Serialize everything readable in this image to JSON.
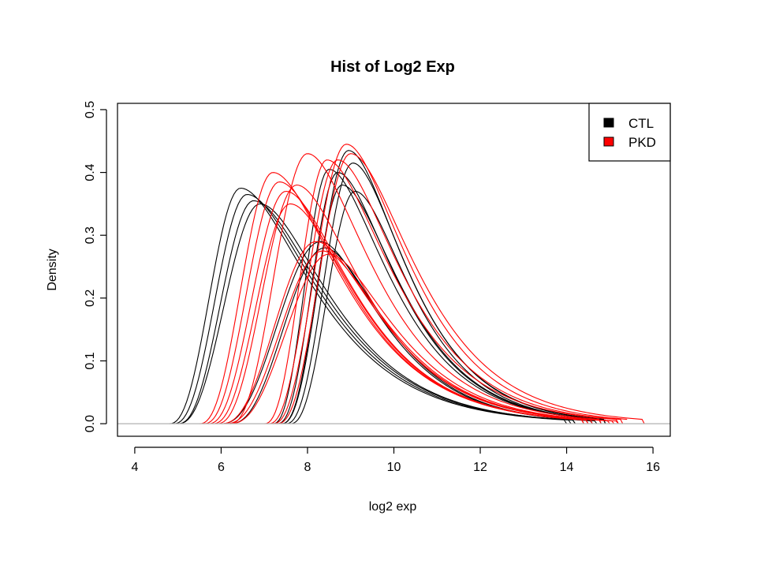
{
  "chart_data": {
    "type": "line",
    "title": "Hist of Log2 Exp",
    "xlabel": "log2 exp",
    "ylabel": "Density",
    "xlim": [
      3.6,
      16.4
    ],
    "ylim": [
      -0.02,
      0.51
    ],
    "x_ticks": [
      4,
      6,
      8,
      10,
      12,
      14,
      16
    ],
    "y_ticks": [
      0.0,
      0.1,
      0.2,
      0.3,
      0.4,
      0.5
    ],
    "x_tick_labels": [
      "4",
      "6",
      "8",
      "10",
      "12",
      "14",
      "16"
    ],
    "y_tick_labels": [
      "0.0",
      "0.1",
      "0.2",
      "0.3",
      "0.4",
      "0.5"
    ],
    "grid": false,
    "baseline": 0.0,
    "legend": {
      "position": "top-right",
      "entries": [
        {
          "label": "CTL",
          "color": "#000000"
        },
        {
          "label": "PKD",
          "color": "#ff0000"
        }
      ]
    },
    "series": [
      {
        "group": "CTL",
        "color": "#000000",
        "peak_x": 6.45,
        "peak_y": 0.375,
        "start_x": 4.8,
        "end_x": 14.0
      },
      {
        "group": "CTL",
        "color": "#000000",
        "peak_x": 6.6,
        "peak_y": 0.365,
        "start_x": 4.9,
        "end_x": 14.1
      },
      {
        "group": "CTL",
        "color": "#000000",
        "peak_x": 6.75,
        "peak_y": 0.355,
        "start_x": 5.0,
        "end_x": 14.2
      },
      {
        "group": "CTL",
        "color": "#000000",
        "peak_x": 6.9,
        "peak_y": 0.35,
        "start_x": 5.0,
        "end_x": 14.2
      },
      {
        "group": "CTL",
        "color": "#000000",
        "peak_x": 8.3,
        "peak_y": 0.29,
        "start_x": 6.0,
        "end_x": 14.6
      },
      {
        "group": "CTL",
        "color": "#000000",
        "peak_x": 8.4,
        "peak_y": 0.28,
        "start_x": 6.2,
        "end_x": 14.7
      },
      {
        "group": "CTL",
        "color": "#000000",
        "peak_x": 8.5,
        "peak_y": 0.405,
        "start_x": 7.2,
        "end_x": 14.8
      },
      {
        "group": "CTL",
        "color": "#000000",
        "peak_x": 8.7,
        "peak_y": 0.4,
        "start_x": 7.3,
        "end_x": 14.8
      },
      {
        "group": "CTL",
        "color": "#000000",
        "peak_x": 8.8,
        "peak_y": 0.38,
        "start_x": 7.4,
        "end_x": 14.9
      },
      {
        "group": "CTL",
        "color": "#000000",
        "peak_x": 8.95,
        "peak_y": 0.435,
        "start_x": 7.4,
        "end_x": 14.9
      },
      {
        "group": "CTL",
        "color": "#000000",
        "peak_x": 9.05,
        "peak_y": 0.415,
        "start_x": 7.5,
        "end_x": 14.9
      },
      {
        "group": "CTL",
        "color": "#000000",
        "peak_x": 9.1,
        "peak_y": 0.37,
        "start_x": 7.6,
        "end_x": 14.9
      },
      {
        "group": "PKD",
        "color": "#ff0000",
        "peak_x": 7.2,
        "peak_y": 0.4,
        "start_x": 5.5,
        "end_x": 14.4
      },
      {
        "group": "PKD",
        "color": "#ff0000",
        "peak_x": 7.35,
        "peak_y": 0.385,
        "start_x": 5.6,
        "end_x": 14.4
      },
      {
        "group": "PKD",
        "color": "#ff0000",
        "peak_x": 7.5,
        "peak_y": 0.37,
        "start_x": 5.7,
        "end_x": 14.5
      },
      {
        "group": "PKD",
        "color": "#ff0000",
        "peak_x": 7.6,
        "peak_y": 0.35,
        "start_x": 5.8,
        "end_x": 14.5
      },
      {
        "group": "PKD",
        "color": "#ff0000",
        "peak_x": 7.75,
        "peak_y": 0.38,
        "start_x": 5.9,
        "end_x": 14.6
      },
      {
        "group": "PKD",
        "color": "#ff0000",
        "peak_x": 8.0,
        "peak_y": 0.43,
        "start_x": 6.2,
        "end_x": 14.8
      },
      {
        "group": "PKD",
        "color": "#ff0000",
        "peak_x": 8.2,
        "peak_y": 0.29,
        "start_x": 6.0,
        "end_x": 15.0
      },
      {
        "group": "PKD",
        "color": "#ff0000",
        "peak_x": 8.35,
        "peak_y": 0.275,
        "start_x": 6.1,
        "end_x": 15.1
      },
      {
        "group": "PKD",
        "color": "#ff0000",
        "peak_x": 8.5,
        "peak_y": 0.27,
        "start_x": 6.2,
        "end_x": 15.2
      },
      {
        "group": "PKD",
        "color": "#ff0000",
        "peak_x": 8.45,
        "peak_y": 0.42,
        "start_x": 7.0,
        "end_x": 15.2
      },
      {
        "group": "PKD",
        "color": "#ff0000",
        "peak_x": 8.7,
        "peak_y": 0.42,
        "start_x": 7.1,
        "end_x": 15.3
      },
      {
        "group": "PKD",
        "color": "#ff0000",
        "peak_x": 8.9,
        "peak_y": 0.445,
        "start_x": 7.2,
        "end_x": 15.4
      },
      {
        "group": "PKD",
        "color": "#ff0000",
        "peak_x": 9.0,
        "peak_y": 0.43,
        "start_x": 7.3,
        "end_x": 15.8
      }
    ]
  }
}
